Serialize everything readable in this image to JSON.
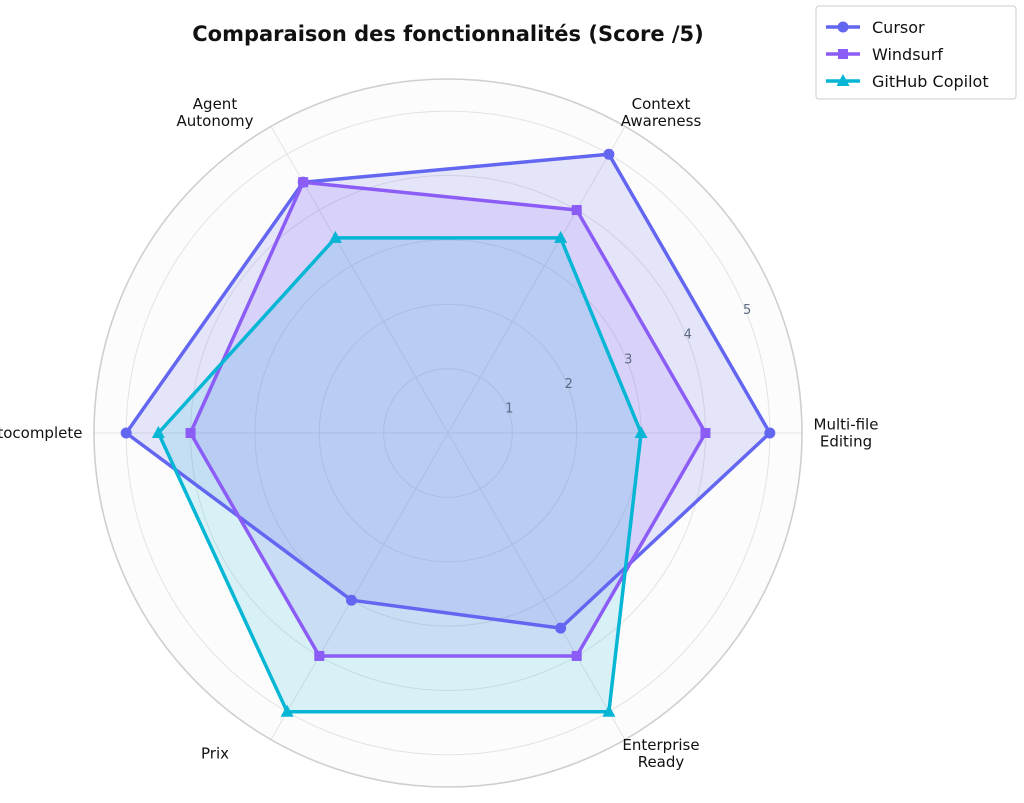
{
  "chart_data": {
    "type": "radar",
    "title": "Comparaison des fonctionnalités (Score /5)",
    "axes": [
      [
        "Multi-file",
        "Editing"
      ],
      [
        "Context",
        "Awareness"
      ],
      [
        "Agent",
        "Autonomy"
      ],
      [
        "Autocomplete"
      ],
      [
        "Prix"
      ],
      [
        "Enterprise",
        "Ready"
      ]
    ],
    "rticks": [
      "1",
      "2",
      "3",
      "4",
      "5"
    ],
    "rlim": [
      0,
      5.5
    ],
    "grid": true,
    "legend_position": "top-right",
    "series": [
      {
        "name": "Cursor",
        "marker": "circle",
        "color": "#6366f1",
        "values": [
          5,
          5,
          4.5,
          5,
          3,
          3.5
        ]
      },
      {
        "name": "Windsurf",
        "marker": "square",
        "color": "#8b5cf6",
        "values": [
          4,
          4,
          4.5,
          4,
          4,
          4
        ]
      },
      {
        "name": "GitHub Copilot",
        "marker": "triangle",
        "color": "#06b6d4",
        "values": [
          3,
          3.5,
          3.5,
          4.5,
          5,
          5
        ]
      }
    ]
  }
}
